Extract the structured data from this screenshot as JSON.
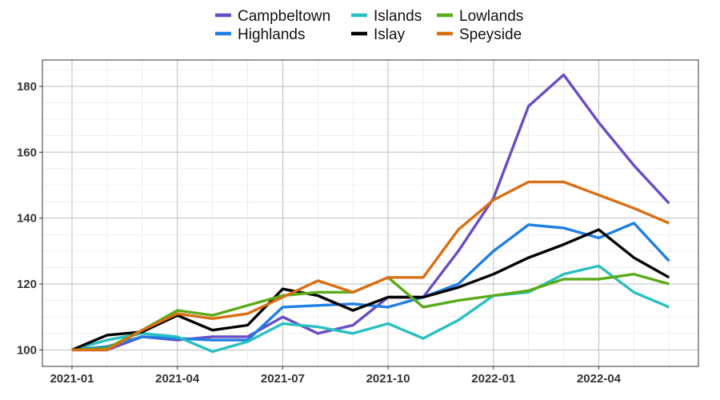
{
  "chart_data": {
    "type": "line",
    "title": "",
    "xlabel": "",
    "ylabel": "",
    "x": [
      "2021-01",
      "2021-02",
      "2021-03",
      "2021-04",
      "2021-05",
      "2021-06",
      "2021-07",
      "2021-08",
      "2021-09",
      "2021-10",
      "2021-11",
      "2021-12",
      "2022-01",
      "2022-02",
      "2022-03",
      "2022-04",
      "2022-05",
      "2022-06"
    ],
    "x_ticks": [
      "2021-01",
      "2021-04",
      "2021-07",
      "2021-10",
      "2022-01",
      "2022-04"
    ],
    "y_ticks": [
      100,
      120,
      140,
      160,
      180
    ],
    "ylim": [
      95,
      188
    ],
    "grid": true,
    "legend_position": "top",
    "series": [
      {
        "name": "Campbeltown",
        "color": "#6a4cc4",
        "values": [
          100,
          100,
          104,
          103,
          104,
          104,
          110,
          105,
          107.5,
          116,
          116,
          130,
          146,
          174,
          183.5,
          169,
          156,
          144.5
        ]
      },
      {
        "name": "Highlands",
        "color": "#1f7fe0",
        "values": [
          100,
          101,
          104,
          103.5,
          103,
          103,
          113,
          113.5,
          114,
          113,
          116,
          120,
          130,
          138,
          137,
          134,
          138.5,
          127
        ]
      },
      {
        "name": "Islands",
        "color": "#2bbfc0",
        "values": [
          100,
          103,
          105,
          104,
          99.5,
          102.5,
          108,
          107,
          105,
          108,
          103.5,
          109,
          116.5,
          117.5,
          123,
          125.5,
          117.5,
          113
        ]
      },
      {
        "name": "Islay",
        "color": "#000000",
        "values": [
          100,
          104.5,
          105.5,
          110.5,
          106,
          107.5,
          118.5,
          116.5,
          112,
          116,
          116,
          119,
          123,
          128,
          132,
          136.5,
          128,
          122
        ]
      },
      {
        "name": "Lowlands",
        "color": "#5aab1a",
        "values": [
          100,
          100.5,
          106,
          112,
          110.5,
          113.5,
          116.5,
          117.5,
          117.5,
          122,
          113,
          115,
          116.5,
          118,
          121.5,
          121.5,
          123,
          120
        ]
      },
      {
        "name": "Speyside",
        "color": "#d86f14",
        "values": [
          100,
          100,
          106,
          111,
          109.5,
          111,
          116,
          121,
          117.5,
          122,
          122,
          136.5,
          145.5,
          151,
          151,
          147,
          143,
          138.5
        ]
      }
    ]
  }
}
